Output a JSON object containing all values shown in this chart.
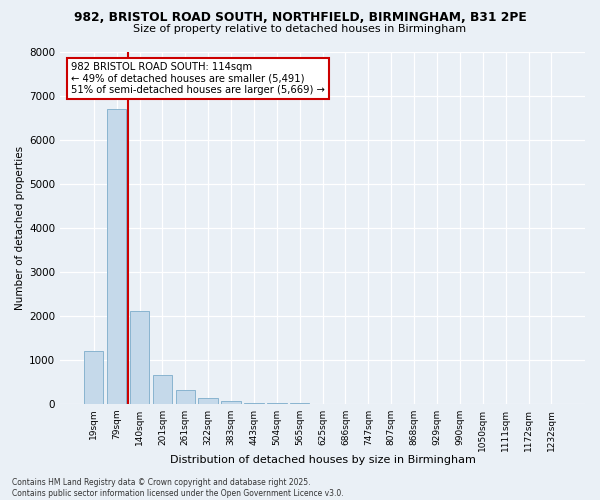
{
  "title_line1": "982, BRISTOL ROAD SOUTH, NORTHFIELD, BIRMINGHAM, B31 2PE",
  "title_line2": "Size of property relative to detached houses in Birmingham",
  "xlabel": "Distribution of detached houses by size in Birmingham",
  "ylabel": "Number of detached properties",
  "bar_color": "#c5d9ea",
  "bar_edge_color": "#89b4d0",
  "vline_color": "#cc0000",
  "annotation_text": "982 BRISTOL ROAD SOUTH: 114sqm\n← 49% of detached houses are smaller (5,491)\n51% of semi-detached houses are larger (5,669) →",
  "annotation_box_color": "#ffffff",
  "annotation_box_edge": "#cc0000",
  "background_color": "#eaf0f6",
  "grid_color": "#ffffff",
  "categories": [
    "19sqm",
    "79sqm",
    "140sqm",
    "201sqm",
    "261sqm",
    "322sqm",
    "383sqm",
    "443sqm",
    "504sqm",
    "565sqm",
    "625sqm",
    "686sqm",
    "747sqm",
    "807sqm",
    "868sqm",
    "929sqm",
    "990sqm",
    "1050sqm",
    "1111sqm",
    "1172sqm",
    "1232sqm"
  ],
  "values": [
    1200,
    6700,
    2100,
    650,
    310,
    125,
    65,
    25,
    15,
    8,
    4,
    2,
    2,
    1,
    1,
    0,
    0,
    0,
    0,
    0,
    0
  ],
  "ylim": [
    0,
    8000
  ],
  "yticks": [
    0,
    1000,
    2000,
    3000,
    4000,
    5000,
    6000,
    7000,
    8000
  ],
  "footer_line1": "Contains HM Land Registry data © Crown copyright and database right 2025.",
  "footer_line2": "Contains public sector information licensed under the Open Government Licence v3.0."
}
